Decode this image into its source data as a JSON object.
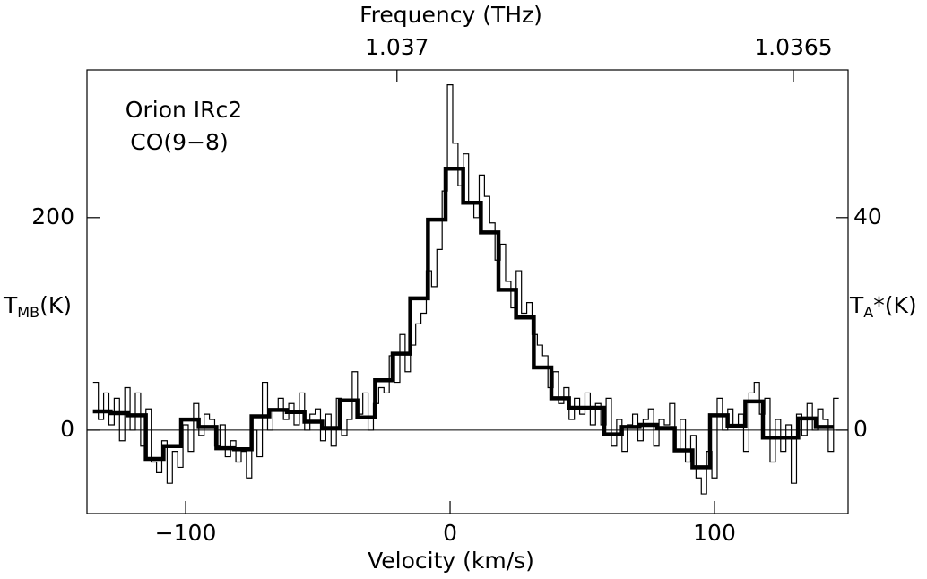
{
  "chart_data": {
    "type": "step",
    "xlabel": "Velocity (km/s)",
    "x2label": "Frequency (THz)",
    "ylabel": {
      "symbol": "T",
      "subscript": "MB",
      "unit": "(K)"
    },
    "y2label": {
      "symbol": "T",
      "subscript": "A",
      "unit": "*(K)"
    },
    "annotations": [
      "Orion IRc2",
      "CO(9−8)"
    ],
    "xlim": [
      -137.3,
      150.5
    ],
    "xticks": [
      -100,
      0,
      100
    ],
    "x2lim": [
      1.037391,
      1.036431
    ],
    "x2ticks": [
      1.037,
      1.0365
    ],
    "ylim": [
      -78.5,
      339
    ],
    "yticks": [
      0,
      200
    ],
    "y2lim": [
      -15.7,
      67.8
    ],
    "y2ticks": [
      0,
      40
    ],
    "series": [
      {
        "color": "#000000",
        "x": [
          -134,
          -132,
          -130,
          -128,
          -126,
          -124,
          -122,
          -120,
          -118,
          -116,
          -114,
          -112,
          -110,
          -108,
          -106,
          -104,
          -102,
          -100,
          -98,
          -96,
          -94,
          -92,
          -90,
          -88,
          -86,
          -84,
          -82,
          -80,
          -78,
          -76,
          -74,
          -72,
          -70,
          -68,
          -66,
          -64,
          -62,
          -60,
          -58,
          -56,
          -54,
          -52,
          -50,
          -48,
          -46,
          -44,
          -42,
          -40,
          -38,
          -36,
          -34,
          -32,
          -30,
          -28,
          -26,
          -24,
          -22,
          -20,
          -18,
          -16,
          -14,
          -12,
          -10,
          -8,
          -6,
          -4,
          -2,
          0,
          2,
          4,
          6,
          8,
          10,
          12,
          14,
          16,
          18,
          20,
          22,
          24,
          26,
          28,
          30,
          32,
          34,
          36,
          38,
          40,
          42,
          44,
          46,
          48,
          50,
          52,
          54,
          56,
          58,
          60,
          62,
          64,
          66,
          68,
          70,
          72,
          74,
          76,
          78,
          80,
          82,
          84,
          86,
          88,
          90,
          92,
          94,
          96,
          98,
          100,
          102,
          104,
          106,
          108,
          110,
          112,
          114,
          116,
          118,
          120,
          122,
          124,
          126,
          128,
          130,
          132,
          134,
          136,
          138,
          140,
          142,
          144,
          146
        ],
        "values": [
          45,
          10,
          35,
          5,
          30,
          -10,
          40,
          0,
          35,
          -15,
          20,
          -30,
          -40,
          -10,
          -50,
          -20,
          -35,
          5,
          -20,
          25,
          -5,
          15,
          10,
          -15,
          5,
          -25,
          -10,
          -30,
          -20,
          -45,
          0,
          -25,
          45,
          0,
          20,
          30,
          10,
          25,
          5,
          35,
          0,
          15,
          20,
          -10,
          15,
          -15,
          30,
          -5,
          10,
          55,
          15,
          35,
          0,
          25,
          40,
          35,
          70,
          45,
          90,
          55,
          80,
          100,
          110,
          150,
          135,
          170,
          225,
          325,
          270,
          230,
          260,
          215,
          200,
          240,
          220,
          195,
          160,
          175,
          140,
          115,
          150,
          110,
          120,
          90,
          80,
          70,
          40,
          55,
          25,
          40,
          10,
          30,
          15,
          35,
          5,
          25,
          5,
          30,
          -15,
          10,
          -20,
          5,
          15,
          -10,
          10,
          20,
          -15,
          10,
          5,
          25,
          -20,
          10,
          -30,
          -5,
          -45,
          -60,
          -20,
          -45,
          30,
          0,
          20,
          5,
          15,
          -20,
          35,
          45,
          15,
          30,
          -30,
          10,
          -20,
          5,
          -50,
          15,
          -5,
          25,
          0,
          20,
          10,
          -20,
          30
        ]
      },
      {
        "color": "#000000",
        "x": [
          -131.7,
          -125.0,
          -118.4,
          -111.7,
          -105.0,
          -98.4,
          -91.7,
          -85.0,
          -78.4,
          -71.7,
          -65.0,
          -58.4,
          -51.7,
          -45.0,
          -38.4,
          -31.7,
          -25.0,
          -18.4,
          -11.7,
          -5.0,
          1.6,
          8.3,
          15.0,
          21.6,
          28.3,
          35.0,
          41.6,
          48.3,
          55.0,
          61.6,
          68.3,
          75.0,
          81.6,
          88.3,
          95.0,
          101.6,
          108.3,
          115.0,
          121.6,
          128.3,
          135.0,
          141.6
        ],
        "values": [
          17.7,
          16,
          14,
          -27,
          -15,
          10,
          3,
          -17,
          -18,
          13,
          19,
          17,
          8,
          2,
          28,
          12,
          47,
          72,
          124,
          198,
          246,
          214,
          186,
          132,
          106,
          59,
          30,
          21,
          21,
          -4,
          3,
          5,
          2,
          -19,
          -35,
          14,
          4,
          27,
          -7,
          -7,
          11,
          3
        ]
      }
    ]
  }
}
